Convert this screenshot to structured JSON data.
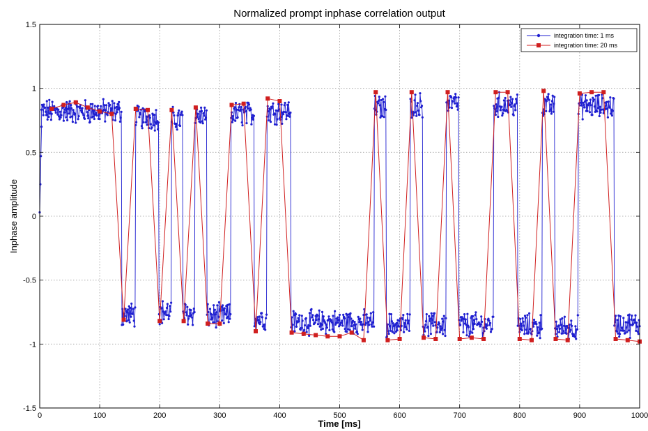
{
  "chart_data": {
    "type": "line",
    "title": "Normalized prompt inphase correlation output",
    "xlabel": "Time [ms]",
    "ylabel": "Inphase amplitude",
    "xlim": [
      0,
      1000
    ],
    "ylim": [
      -1.5,
      1.5
    ],
    "xticks": [
      "0",
      "100",
      "200",
      "300",
      "400",
      "500",
      "600",
      "700",
      "800",
      "900",
      "1000"
    ],
    "yticks": [
      "-1.5",
      "-1",
      "-0.5",
      "0",
      "0.5",
      "1",
      "1.5"
    ],
    "grid": true,
    "legend_position": "top-right",
    "series": [
      {
        "name": "integration time: 1 ms",
        "color": "#1f1fd0",
        "marker": "dot",
        "note_values": "bit-level samples every 1 ms; values approximated as bit level with noise",
        "segments": [
          {
            "from": 0,
            "to": 3,
            "values_start": [
              0.03,
              0.25,
              0.47,
              0.7
            ]
          },
          {
            "from": 3,
            "to": 137,
            "level": 0.82
          },
          {
            "from": 137,
            "to": 160,
            "level": -0.77
          },
          {
            "from": 160,
            "to": 199,
            "level": 0.77
          },
          {
            "from": 199,
            "to": 220,
            "level": -0.75
          },
          {
            "from": 220,
            "to": 239,
            "level": 0.76
          },
          {
            "from": 239,
            "to": 259,
            "level": -0.76
          },
          {
            "from": 259,
            "to": 279,
            "level": 0.78
          },
          {
            "from": 279,
            "to": 319,
            "level": -0.78
          },
          {
            "from": 319,
            "to": 358,
            "level": 0.8
          },
          {
            "from": 358,
            "to": 379,
            "level": -0.8
          },
          {
            "from": 379,
            "to": 419,
            "level": 0.82
          },
          {
            "from": 419,
            "to": 558,
            "level": -0.83
          },
          {
            "from": 558,
            "to": 578,
            "level": 0.85
          },
          {
            "from": 578,
            "to": 618,
            "level": -0.85
          },
          {
            "from": 618,
            "to": 639,
            "level": 0.87
          },
          {
            "from": 639,
            "to": 678,
            "level": -0.85
          },
          {
            "from": 678,
            "to": 699,
            "level": 0.88
          },
          {
            "from": 699,
            "to": 757,
            "level": -0.85
          },
          {
            "from": 757,
            "to": 797,
            "level": 0.87
          },
          {
            "from": 797,
            "to": 838,
            "level": -0.86
          },
          {
            "from": 838,
            "to": 859,
            "level": 0.86
          },
          {
            "from": 859,
            "to": 898,
            "level": -0.87
          },
          {
            "from": 898,
            "to": 958,
            "level": 0.86
          },
          {
            "from": 958,
            "to": 1000,
            "level": -0.85
          }
        ]
      },
      {
        "name": "integration time: 20 ms",
        "color": "#d01f1f",
        "marker": "square",
        "x": [
          20,
          40,
          60,
          80,
          100,
          120,
          140,
          160,
          180,
          200,
          220,
          240,
          260,
          280,
          300,
          320,
          340,
          360,
          380,
          400,
          420,
          440,
          460,
          480,
          500,
          520,
          540,
          560,
          580,
          600,
          620,
          640,
          660,
          680,
          700,
          720,
          740,
          760,
          780,
          800,
          820,
          840,
          860,
          880,
          900,
          920,
          940,
          960,
          980,
          1000
        ],
        "values": [
          0.84,
          0.87,
          0.89,
          0.85,
          0.82,
          0.8,
          -0.81,
          0.84,
          0.83,
          -0.82,
          0.83,
          -0.82,
          0.85,
          -0.84,
          -0.84,
          0.87,
          0.88,
          -0.9,
          0.92,
          0.9,
          -0.91,
          -0.92,
          -0.93,
          -0.94,
          -0.94,
          -0.91,
          -0.97,
          0.97,
          -0.97,
          -0.96,
          0.97,
          -0.95,
          -0.96,
          0.97,
          -0.96,
          -0.95,
          -0.96,
          0.97,
          0.97,
          -0.96,
          -0.97,
          0.98,
          -0.96,
          -0.97,
          0.96,
          0.97,
          0.97,
          -0.96,
          -0.97,
          -0.98
        ]
      }
    ]
  }
}
